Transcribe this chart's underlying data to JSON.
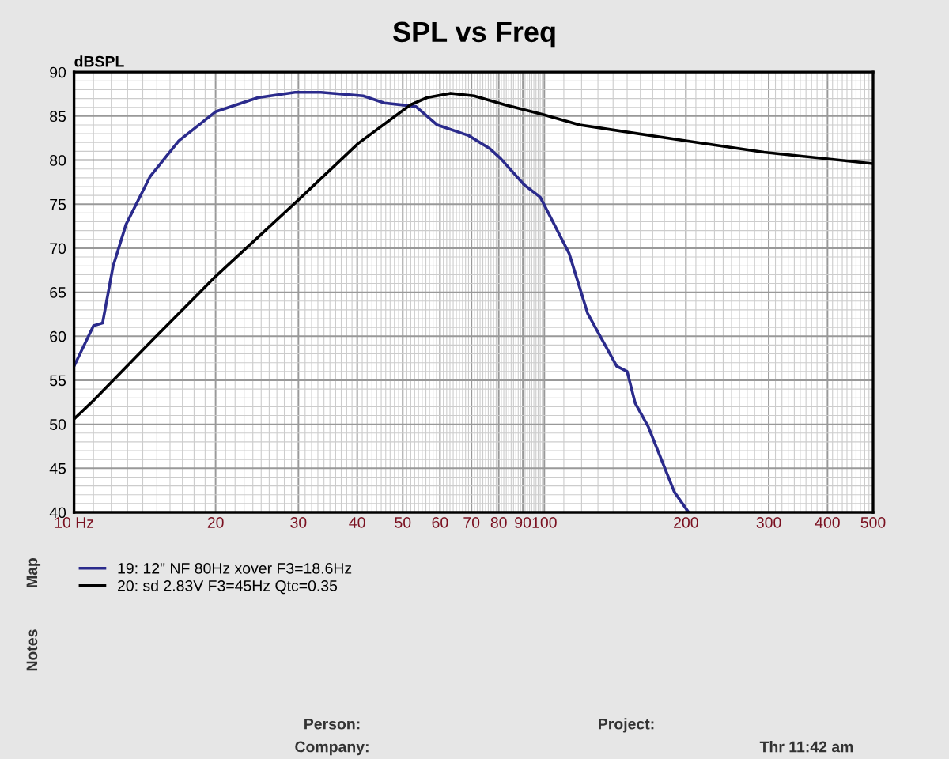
{
  "chart_data": {
    "type": "line",
    "title": "SPL vs Freq",
    "ylabel": "dBSPL",
    "xlim": [
      10,
      500
    ],
    "ylim": [
      40,
      90
    ],
    "log": "x",
    "xticks": [
      {
        "value": 10,
        "label": "10 Hz"
      },
      20,
      30,
      40,
      50,
      60,
      70,
      80,
      90,
      100,
      200,
      300,
      400,
      500
    ],
    "yticks": [
      40,
      45,
      50,
      55,
      60,
      65,
      70,
      75,
      80,
      85,
      90
    ],
    "grid": true,
    "legend": "bottom",
    "line_style": "solid",
    "marker": "none",
    "series": [
      {
        "name": "19: 12\" NF 80Hz xover F3=18.6Hz",
        "color": "#2b2b8c",
        "x": [
          10,
          11,
          11.5,
          12.1,
          12.9,
          14.5,
          16.7,
          20,
          24.6,
          29.5,
          33.5,
          41.2,
          45.7,
          53.3,
          59.2,
          69,
          76.6,
          80.7,
          90.6,
          98,
          112.9,
          123.6,
          142.5,
          150,
          156,
          166.4,
          189,
          202
        ],
        "values": [
          56.6,
          61.2,
          61.5,
          67.9,
          72.7,
          78.1,
          82.2,
          85.5,
          87.1,
          87.7,
          87.7,
          87.3,
          86.5,
          86.1,
          84.0,
          82.8,
          81.3,
          80.2,
          77.2,
          75.8,
          69.4,
          62.6,
          56.6,
          56.0,
          52.4,
          49.7,
          42.3,
          40.1
        ]
      },
      {
        "name": "20: sd 2.83V F3=45Hz Qtc=0.35",
        "color": "#000000",
        "x": [
          10,
          11,
          14.7,
          20,
          30.3,
          40.2,
          52,
          56.3,
          63.2,
          70.9,
          82.4,
          99.2,
          118.9,
          199.6,
          293,
          500
        ],
        "values": [
          50.6,
          52.7,
          59.6,
          66.8,
          75.7,
          81.9,
          86.3,
          87.1,
          87.6,
          87.3,
          86.3,
          85.2,
          84.0,
          82.2,
          80.9,
          79.6
        ]
      }
    ],
    "annotations": [
      "Map",
      "Notes",
      "Person:",
      "Company:",
      "Project:",
      "Thr 11:42 am"
    ]
  }
}
